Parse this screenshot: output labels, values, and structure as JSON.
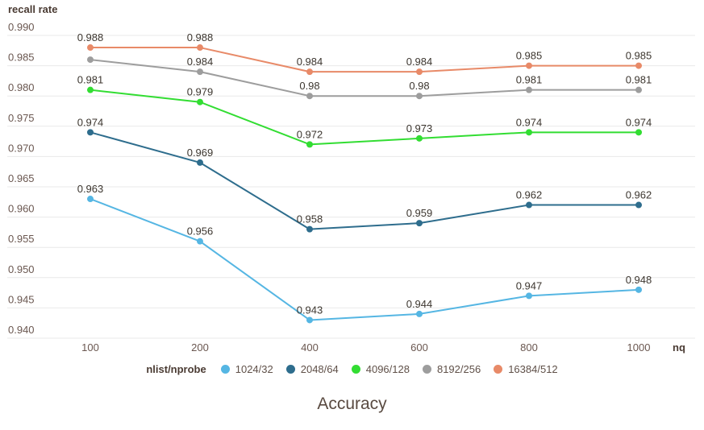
{
  "colors": {
    "background": "#ffffff",
    "grid": "#e9e9e9",
    "axis_text": "#6a5750",
    "heading_text": "#4a3b33",
    "point_label_text": "#3c362f",
    "title_text": "#594a41"
  },
  "chart_data": {
    "type": "line",
    "title": "Accuracy",
    "ylabel": "recall rate",
    "xlabel": "nq",
    "legend_title": "nlist/nprobe",
    "legend_position": "bottom",
    "grid": true,
    "categories": [
      "100",
      "200",
      "400",
      "600",
      "800",
      "1000"
    ],
    "ylim": [
      0.94,
      0.99
    ],
    "ytick_step": 0.005,
    "yticks": [
      "0.990",
      "0.985",
      "0.980",
      "0.975",
      "0.970",
      "0.965",
      "0.960",
      "0.955",
      "0.950",
      "0.945",
      "0.940"
    ],
    "series": [
      {
        "name": "1024/32",
        "color": "#55b6e3",
        "values": [
          0.963,
          0.956,
          0.943,
          0.944,
          0.947,
          0.948
        ],
        "point_labels": [
          "0.963",
          "0.956",
          "0.943",
          "0.944",
          "0.947",
          "0.948"
        ]
      },
      {
        "name": "2048/64",
        "color": "#2e6d8d",
        "values": [
          0.974,
          0.969,
          0.958,
          0.959,
          0.962,
          0.962
        ],
        "point_labels": [
          "0.974",
          "0.969",
          "0.958",
          "0.959",
          "0.962",
          "0.962"
        ]
      },
      {
        "name": "4096/128",
        "color": "#32dd32",
        "values": [
          0.981,
          0.979,
          0.972,
          0.973,
          0.974,
          0.974
        ],
        "point_labels": [
          "0.981",
          "0.979",
          "0.972",
          "0.973",
          "0.974",
          "0.974"
        ]
      },
      {
        "name": "8192/256",
        "color": "#9d9d9d",
        "values": [
          0.986,
          0.984,
          0.98,
          0.98,
          0.981,
          0.981
        ],
        "point_labels": [
          null,
          "0.984",
          "0.98",
          "0.98",
          "0.981",
          "0.981"
        ]
      },
      {
        "name": "16384/512",
        "color": "#e88a68",
        "values": [
          0.988,
          0.988,
          0.984,
          0.984,
          0.985,
          0.985
        ],
        "point_labels": [
          "0.988",
          "0.988",
          "0.984",
          "0.984",
          "0.985",
          "0.985"
        ]
      }
    ]
  }
}
